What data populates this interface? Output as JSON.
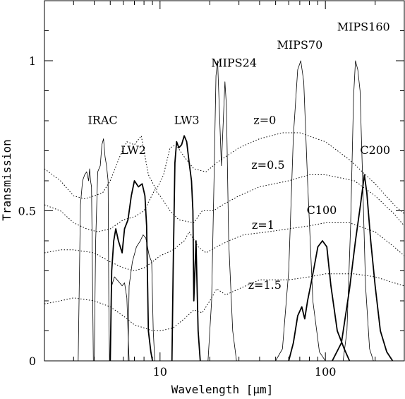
{
  "chart_data": {
    "type": "line",
    "title": "",
    "xlabel": "Wavelength [μm]",
    "ylabel": "Transmission",
    "xscale": "log",
    "xlim": [
      2,
      300
    ],
    "ylim": [
      0,
      1.2
    ],
    "xticks": [
      {
        "value": 10,
        "label": "10"
      },
      {
        "value": 100,
        "label": "100"
      }
    ],
    "yticks": [
      {
        "value": 0,
        "label": "0"
      },
      {
        "value": 0.5,
        "label": "0.5"
      },
      {
        "value": 1,
        "label": "1"
      }
    ],
    "grid": false,
    "legend": "none",
    "series": [
      {
        "name": "IRAC",
        "style": "thin",
        "segments": [
          [
            [
              3.2,
              0
            ],
            [
              3.3,
              0.52
            ],
            [
              3.4,
              0.6
            ],
            [
              3.5,
              0.62
            ],
            [
              3.6,
              0.63
            ],
            [
              3.7,
              0.6
            ],
            [
              3.75,
              0.64
            ],
            [
              3.8,
              0.6
            ],
            [
              3.85,
              0.58
            ],
            [
              3.9,
              0.3
            ],
            [
              3.95,
              0
            ]
          ],
          [
            [
              4.0,
              0
            ],
            [
              4.08,
              0.4
            ],
            [
              4.2,
              0.63
            ],
            [
              4.35,
              0.65
            ],
            [
              4.45,
              0.72
            ],
            [
              4.55,
              0.74
            ],
            [
              4.65,
              0.68
            ],
            [
              4.75,
              0.65
            ],
            [
              4.85,
              0.6
            ],
            [
              4.9,
              0.2
            ],
            [
              4.95,
              0
            ]
          ],
          [
            [
              5.0,
              0
            ],
            [
              5.1,
              0.25
            ],
            [
              5.3,
              0.28
            ],
            [
              5.5,
              0.27
            ],
            [
              5.7,
              0.26
            ],
            [
              5.9,
              0.25
            ],
            [
              6.1,
              0.26
            ],
            [
              6.3,
              0.21
            ],
            [
              6.4,
              0.1
            ],
            [
              6.5,
              0
            ]
          ],
          [
            [
              6.4,
              0
            ],
            [
              6.5,
              0.25
            ],
            [
              6.8,
              0.33
            ],
            [
              7.2,
              0.38
            ],
            [
              7.6,
              0.4
            ],
            [
              7.9,
              0.42
            ],
            [
              8.2,
              0.41
            ],
            [
              8.6,
              0.35
            ],
            [
              8.9,
              0.33
            ],
            [
              9.1,
              0.1
            ],
            [
              9.3,
              0
            ]
          ]
        ]
      },
      {
        "name": "LW2",
        "style": "thick",
        "segments": [
          [
            [
              5.0,
              0
            ],
            [
              5.1,
              0.3
            ],
            [
              5.25,
              0.4
            ],
            [
              5.4,
              0.44
            ],
            [
              5.6,
              0.4
            ],
            [
              5.9,
              0.36
            ],
            [
              6.1,
              0.44
            ],
            [
              6.4,
              0.47
            ],
            [
              6.7,
              0.55
            ],
            [
              7.0,
              0.6
            ],
            [
              7.4,
              0.58
            ],
            [
              7.8,
              0.59
            ],
            [
              8.1,
              0.55
            ],
            [
              8.3,
              0.45
            ],
            [
              8.5,
              0.1
            ],
            [
              8.8,
              0.03
            ],
            [
              9.0,
              0
            ]
          ]
        ]
      },
      {
        "name": "LW3",
        "style": "thick",
        "segments": [
          [
            [
              11.8,
              0
            ],
            [
              12.0,
              0.3
            ],
            [
              12.3,
              0.66
            ],
            [
              12.6,
              0.73
            ],
            [
              13.0,
              0.71
            ],
            [
              13.5,
              0.72
            ],
            [
              14.0,
              0.75
            ],
            [
              14.5,
              0.73
            ],
            [
              15.0,
              0.66
            ],
            [
              15.5,
              0.6
            ],
            [
              15.8,
              0.5
            ],
            [
              16.0,
              0.2
            ],
            [
              16.5,
              0.4
            ],
            [
              17.0,
              0.1
            ],
            [
              17.5,
              0
            ]
          ]
        ]
      },
      {
        "name": "MIPS24",
        "style": "thin",
        "segments": [
          [
            [
              19.5,
              0
            ],
            [
              20.5,
              0.2
            ],
            [
              21.2,
              0.6
            ],
            [
              21.8,
              0.95
            ],
            [
              22.3,
              1.0
            ],
            [
              22.8,
              0.85
            ],
            [
              23.5,
              0.65
            ],
            [
              24.2,
              0.82
            ],
            [
              24.7,
              0.93
            ],
            [
              25.2,
              0.85
            ],
            [
              26.0,
              0.4
            ],
            [
              27.5,
              0.1
            ],
            [
              29,
              0
            ]
          ]
        ]
      },
      {
        "name": "MIPS70",
        "style": "thin",
        "segments": [
          [
            [
              50,
              0
            ],
            [
              55,
              0.04
            ],
            [
              60,
              0.3
            ],
            [
              64,
              0.75
            ],
            [
              68,
              0.97
            ],
            [
              71,
              1.0
            ],
            [
              74,
              0.93
            ],
            [
              78,
              0.6
            ],
            [
              84,
              0.2
            ],
            [
              92,
              0.03
            ],
            [
              100,
              0
            ]
          ]
        ]
      },
      {
        "name": "MIPS160",
        "style": "thin",
        "segments": [
          [
            [
              128,
              0
            ],
            [
              135,
              0.1
            ],
            [
              142,
              0.45
            ],
            [
              148,
              0.88
            ],
            [
              152,
              1.0
            ],
            [
              157,
              0.97
            ],
            [
              162,
              0.9
            ],
            [
              168,
              0.6
            ],
            [
              175,
              0.25
            ],
            [
              185,
              0.04
            ],
            [
              195,
              0
            ]
          ]
        ]
      },
      {
        "name": "C100",
        "style": "thick",
        "segments": [
          [
            [
              60,
              0
            ],
            [
              64,
              0.06
            ],
            [
              68,
              0.15
            ],
            [
              72,
              0.18
            ],
            [
              75,
              0.14
            ],
            [
              78,
              0.2
            ],
            [
              82,
              0.26
            ],
            [
              86,
              0.32
            ],
            [
              90,
              0.38
            ],
            [
              96,
              0.4
            ],
            [
              102,
              0.38
            ],
            [
              108,
              0.25
            ],
            [
              118,
              0.1
            ],
            [
              130,
              0.04
            ],
            [
              140,
              0
            ]
          ]
        ]
      },
      {
        "name": "C200",
        "style": "thick",
        "segments": [
          [
            [
              110,
              0
            ],
            [
              125,
              0.06
            ],
            [
              140,
              0.24
            ],
            [
              152,
              0.4
            ],
            [
              163,
              0.52
            ],
            [
              172,
              0.62
            ],
            [
              178,
              0.56
            ],
            [
              188,
              0.4
            ],
            [
              200,
              0.25
            ],
            [
              215,
              0.1
            ],
            [
              235,
              0.03
            ],
            [
              255,
              0
            ]
          ]
        ]
      },
      {
        "name": "z=0",
        "style": "dotted",
        "segments": [
          [
            [
              2,
              0.64
            ],
            [
              2.5,
              0.6
            ],
            [
              3,
              0.55
            ],
            [
              3.5,
              0.54
            ],
            [
              4,
              0.55
            ],
            [
              4.5,
              0.56
            ],
            [
              5,
              0.6
            ],
            [
              5.7,
              0.68
            ],
            [
              6.3,
              0.73
            ],
            [
              7.0,
              0.72
            ],
            [
              7.7,
              0.75
            ],
            [
              8.5,
              0.62
            ],
            [
              9.5,
              0.57
            ],
            [
              10.5,
              0.62
            ],
            [
              11.5,
              0.71
            ],
            [
              12.5,
              0.72
            ],
            [
              14,
              0.68
            ],
            [
              16,
              0.64
            ],
            [
              19,
              0.63
            ],
            [
              22,
              0.66
            ],
            [
              30,
              0.71
            ],
            [
              40,
              0.74
            ],
            [
              55,
              0.76
            ],
            [
              70,
              0.76
            ],
            [
              100,
              0.73
            ],
            [
              140,
              0.67
            ],
            [
              200,
              0.59
            ],
            [
              260,
              0.52
            ],
            [
              300,
              0.49
            ]
          ]
        ]
      },
      {
        "name": "z=0.5",
        "style": "dotted",
        "segments": [
          [
            [
              2,
              0.52
            ],
            [
              2.5,
              0.5
            ],
            [
              3,
              0.46
            ],
            [
              3.6,
              0.44
            ],
            [
              4.2,
              0.43
            ],
            [
              5,
              0.44
            ],
            [
              6,
              0.47
            ],
            [
              7,
              0.48
            ],
            [
              8,
              0.5
            ],
            [
              9.3,
              0.57
            ],
            [
              10,
              0.55
            ],
            [
              11.5,
              0.5
            ],
            [
              13,
              0.47
            ],
            [
              16,
              0.46
            ],
            [
              18,
              0.5
            ],
            [
              21,
              0.5
            ],
            [
              24,
              0.52
            ],
            [
              30,
              0.55
            ],
            [
              40,
              0.58
            ],
            [
              60,
              0.6
            ],
            [
              80,
              0.62
            ],
            [
              100,
              0.62
            ],
            [
              150,
              0.6
            ],
            [
              200,
              0.55
            ],
            [
              260,
              0.49
            ],
            [
              300,
              0.45
            ]
          ]
        ]
      },
      {
        "name": "z=1",
        "style": "dotted",
        "segments": [
          [
            [
              2,
              0.36
            ],
            [
              2.5,
              0.37
            ],
            [
              3,
              0.37
            ],
            [
              4,
              0.36
            ],
            [
              5,
              0.33
            ],
            [
              6,
              0.31
            ],
            [
              7,
              0.3
            ],
            [
              8,
              0.31
            ],
            [
              9,
              0.33
            ],
            [
              10,
              0.35
            ],
            [
              12,
              0.37
            ],
            [
              14,
              0.4
            ],
            [
              15,
              0.43
            ],
            [
              17,
              0.38
            ],
            [
              19,
              0.36
            ],
            [
              22,
              0.38
            ],
            [
              26,
              0.4
            ],
            [
              32,
              0.42
            ],
            [
              45,
              0.43
            ],
            [
              60,
              0.44
            ],
            [
              80,
              0.45
            ],
            [
              100,
              0.46
            ],
            [
              140,
              0.46
            ],
            [
              200,
              0.43
            ],
            [
              260,
              0.38
            ],
            [
              300,
              0.35
            ]
          ]
        ]
      },
      {
        "name": "z=1.5",
        "style": "dotted",
        "segments": [
          [
            [
              2,
              0.19
            ],
            [
              2.5,
              0.2
            ],
            [
              3,
              0.21
            ],
            [
              4,
              0.2
            ],
            [
              5,
              0.18
            ],
            [
              6,
              0.15
            ],
            [
              7,
              0.12
            ],
            [
              8,
              0.11
            ],
            [
              9,
              0.1
            ],
            [
              10,
              0.1
            ],
            [
              12,
              0.11
            ],
            [
              14,
              0.14
            ],
            [
              16,
              0.17
            ],
            [
              18,
              0.16
            ],
            [
              20,
              0.2
            ],
            [
              22,
              0.24
            ],
            [
              25,
              0.22
            ],
            [
              30,
              0.24
            ],
            [
              40,
              0.27
            ],
            [
              60,
              0.27
            ],
            [
              80,
              0.28
            ],
            [
              100,
              0.29
            ],
            [
              150,
              0.29
            ],
            [
              200,
              0.28
            ],
            [
              260,
              0.26
            ],
            [
              300,
              0.25
            ]
          ]
        ]
      }
    ],
    "annotations": [
      {
        "text": "IRAC",
        "x": 4.5,
        "y": 0.79
      },
      {
        "text": "LW2",
        "x": 6.9,
        "y": 0.69
      },
      {
        "text": "LW3",
        "x": 14.5,
        "y": 0.79
      },
      {
        "text": "MIPS24",
        "x": 28,
        "y": 0.98
      },
      {
        "text": "MIPS70",
        "x": 70,
        "y": 1.04
      },
      {
        "text": "MIPS160",
        "x": 170,
        "y": 1.1
      },
      {
        "text": "z=0",
        "x": 43,
        "y": 0.79
      },
      {
        "text": "z=0.5",
        "x": 45,
        "y": 0.64
      },
      {
        "text": "z=1",
        "x": 42,
        "y": 0.44
      },
      {
        "text": "z=1.5",
        "x": 43,
        "y": 0.24
      },
      {
        "text": "C100",
        "x": 95,
        "y": 0.49
      },
      {
        "text": "C200",
        "x": 200,
        "y": 0.69
      }
    ]
  }
}
